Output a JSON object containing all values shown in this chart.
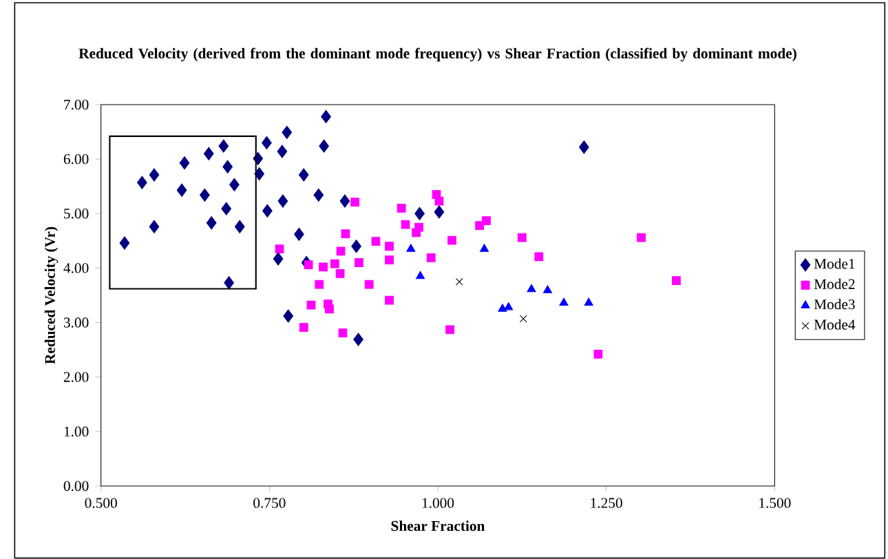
{
  "chart_data": {
    "type": "scatter",
    "title": "Reduced Velocity (derived from the dominant mode frequency) vs Shear Fraction (classified by dominant mode)",
    "xlabel": "Shear Fraction",
    "ylabel": "Reduced Velocity (Vr)",
    "xlim": [
      0.5,
      1.5
    ],
    "ylim": [
      0,
      7
    ],
    "xticks": [
      {
        "value": 0.5,
        "label": "0.500"
      },
      {
        "value": 0.75,
        "label": "0.750"
      },
      {
        "value": 1.0,
        "label": "1.000"
      },
      {
        "value": 1.25,
        "label": "1.250"
      },
      {
        "value": 1.5,
        "label": "1.500"
      }
    ],
    "yticks": [
      {
        "value": 0,
        "label": "0.00"
      },
      {
        "value": 1,
        "label": "1.00"
      },
      {
        "value": 2,
        "label": "2.00"
      },
      {
        "value": 3,
        "label": "3.00"
      },
      {
        "value": 4,
        "label": "4.00"
      },
      {
        "value": 5,
        "label": "5.00"
      },
      {
        "value": 6,
        "label": "6.00"
      },
      {
        "value": 7,
        "label": "7.00"
      }
    ],
    "grid": false,
    "legend": "right",
    "series": [
      {
        "name": "Mode1",
        "color": "#000080",
        "marker": "diamond",
        "x": [
          0.535,
          0.561,
          0.579,
          0.579,
          0.624,
          0.62,
          0.66,
          0.654,
          0.664,
          0.682,
          0.688,
          0.686,
          0.698,
          0.69,
          0.706,
          0.733,
          0.735,
          0.746,
          0.747,
          0.769,
          0.776,
          0.77,
          0.763,
          0.778,
          0.794,
          0.801,
          0.805,
          0.823,
          0.831,
          0.834,
          0.862,
          0.879,
          0.882,
          0.973,
          1.002,
          1.217
        ],
        "values": [
          4.46,
          5.57,
          5.71,
          4.76,
          5.93,
          5.43,
          6.1,
          5.34,
          4.83,
          6.24,
          5.86,
          5.09,
          5.53,
          3.73,
          4.76,
          6.01,
          5.73,
          6.3,
          5.05,
          6.14,
          6.49,
          5.23,
          4.17,
          3.12,
          4.62,
          5.71,
          4.1,
          5.34,
          6.24,
          6.78,
          5.23,
          4.4,
          2.69,
          5.0,
          5.03,
          6.22
        ]
      },
      {
        "name": "Mode2",
        "color": "#ff00ff",
        "marker": "square",
        "x": [
          0.765,
          0.808,
          0.812,
          0.801,
          0.824,
          0.83,
          0.837,
          0.839,
          0.847,
          0.855,
          0.856,
          0.859,
          0.863,
          0.877,
          0.883,
          0.898,
          0.908,
          0.928,
          0.928,
          0.928,
          0.946,
          0.952,
          0.968,
          0.972,
          0.99,
          0.998,
          1.002,
          1.018,
          1.021,
          1.062,
          1.072,
          1.125,
          1.15,
          1.238,
          1.302,
          1.354
        ],
        "values": [
          4.35,
          4.06,
          3.32,
          2.91,
          3.7,
          4.02,
          3.34,
          3.25,
          4.08,
          3.9,
          4.31,
          2.81,
          4.63,
          5.21,
          4.1,
          3.7,
          4.49,
          4.4,
          4.15,
          3.41,
          5.1,
          4.8,
          4.65,
          4.75,
          4.19,
          5.35,
          5.23,
          2.87,
          4.51,
          4.78,
          4.87,
          4.56,
          4.21,
          2.42,
          4.56,
          3.77
        ]
      },
      {
        "name": "Mode3",
        "color": "#0000ff",
        "marker": "triangle",
        "x": [
          0.96,
          0.974,
          1.069,
          1.096,
          1.105,
          1.139,
          1.163,
          1.187,
          1.224
        ],
        "values": [
          4.35,
          3.85,
          4.35,
          3.25,
          3.28,
          3.61,
          3.59,
          3.36,
          3.36
        ]
      },
      {
        "name": "Mode4",
        "color": "#000000",
        "marker": "cross",
        "x": [
          1.032,
          1.127
        ],
        "values": [
          3.75,
          3.07
        ]
      }
    ]
  }
}
